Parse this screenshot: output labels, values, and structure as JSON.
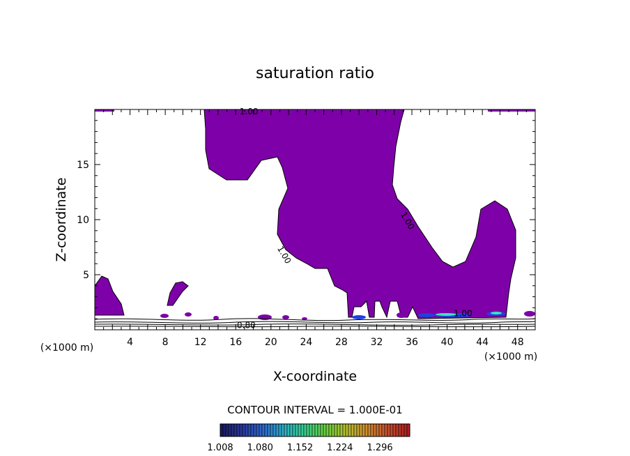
{
  "chart_data": {
    "type": "contour",
    "title": "saturation ratio",
    "xlabel": "X-coordinate",
    "ylabel": "Z-coordinate",
    "x_unit": "(×1000 m)",
    "x_unit_right": "(×1000 m)",
    "xlim": [
      0,
      50
    ],
    "ylim": [
      0,
      20
    ],
    "x_ticks": [
      4,
      8,
      12,
      16,
      20,
      24,
      28,
      32,
      36,
      40,
      44,
      48
    ],
    "y_ticks": [
      5,
      10,
      15
    ],
    "contour_interval_text": "CONTOUR INTERVAL = 1.000E-01",
    "contour_labels": [
      {
        "text": "1.00",
        "x": 17.5,
        "y": 19.8
      },
      {
        "text": "1.00",
        "x": 35.5,
        "y": 9.9
      },
      {
        "text": "1.00",
        "x": 21.5,
        "y": 6.8
      },
      {
        "text": "0.80",
        "x": 17.2,
        "y": 0.4
      },
      {
        "text": "1.00",
        "x": 41.8,
        "y": 1.5
      }
    ],
    "colorbar": {
      "tick_labels": [
        "1.008",
        "1.080",
        "1.152",
        "1.224",
        "1.296"
      ],
      "min": 1.008,
      "max": 1.35,
      "colors": [
        "#1a1a60",
        "#2a3aa0",
        "#2e6ad0",
        "#2fb0c8",
        "#35d090",
        "#6ad040",
        "#b8c030",
        "#d09030",
        "#c85030",
        "#b02020"
      ]
    },
    "fill_color": "#7e00a8",
    "cyan_patch_color": "#3fe0c0",
    "blue_patch_color": "#2040e0"
  }
}
